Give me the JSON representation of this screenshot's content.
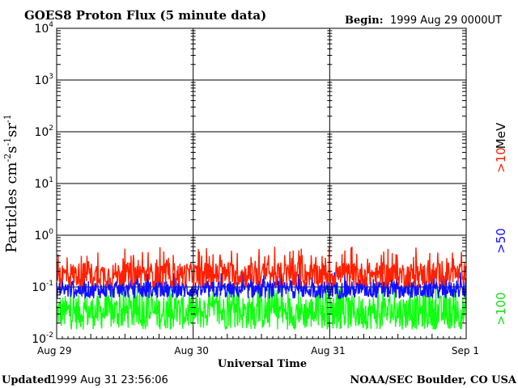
{
  "header": {
    "title": "GOES8 Proton Flux (5 minute data)",
    "begin_label": "Begin:",
    "begin_value": "1999 Aug 29 0000UT"
  },
  "footer": {
    "updated_label": "Updated",
    "updated_value": "1999 Aug 31 23:56:06",
    "credit": "NOAA/SEC Boulder, CO USA"
  },
  "chart_data": {
    "type": "line",
    "title": "GOES8 Proton Flux (5 minute data)",
    "xlabel": "Universal Time",
    "ylabel": "Particles cm-2s-1sr-1",
    "y_scale": "log",
    "ylim": [
      0.01,
      10000
    ],
    "y_ticks": [
      {
        "base": "10",
        "exp": "-2"
      },
      {
        "base": "10",
        "exp": "-1"
      },
      {
        "base": "10",
        "exp": "0"
      },
      {
        "base": "10",
        "exp": "1"
      },
      {
        "base": "10",
        "exp": "2"
      },
      {
        "base": "10",
        "exp": "3"
      },
      {
        "base": "10",
        "exp": "4"
      }
    ],
    "x_ticks": [
      "Aug 29",
      "Aug 30",
      "Aug 31",
      "Sep 1"
    ],
    "x_range_days": [
      0,
      3
    ],
    "unit": "MeV",
    "grid": true,
    "series": [
      {
        "name": ">10",
        "color": "#ff2000",
        "typical_range": [
          0.1,
          0.3
        ],
        "spikes_to": 0.6
      },
      {
        "name": ">50",
        "color": "#1010ff",
        "typical_range": [
          0.06,
          0.13
        ],
        "spikes_to": 0.2
      },
      {
        "name": ">100",
        "color": "#10ff10",
        "typical_range": [
          0.015,
          0.07
        ],
        "spikes_to": 0.1
      }
    ]
  }
}
